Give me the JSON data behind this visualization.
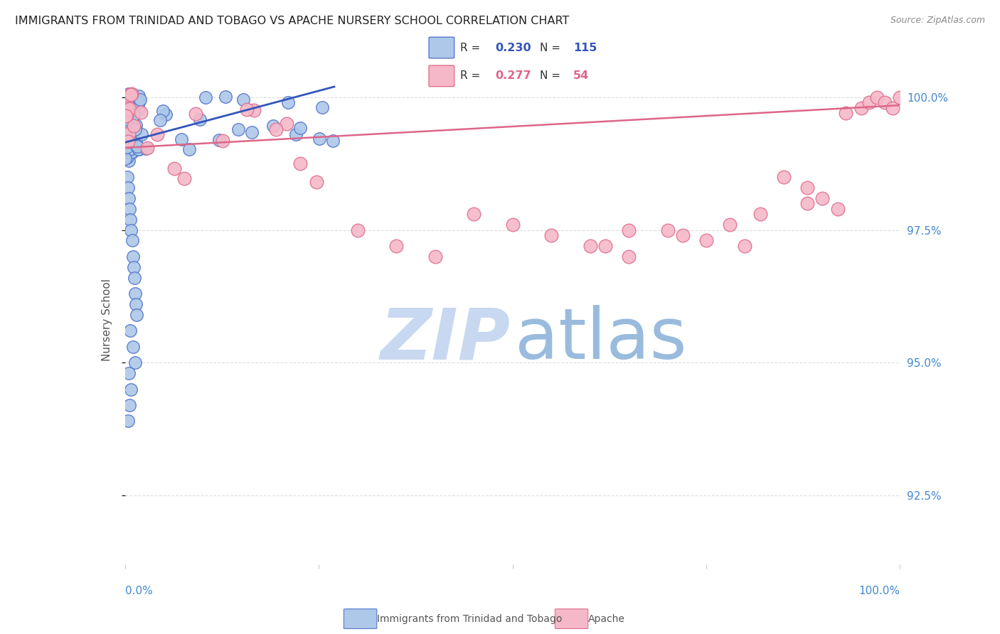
{
  "title": "IMMIGRANTS FROM TRINIDAD AND TOBAGO VS APACHE NURSERY SCHOOL CORRELATION CHART",
  "source": "Source: ZipAtlas.com",
  "ylabel": "Nursery School",
  "ytick_values": [
    0.925,
    0.95,
    0.975,
    1.0
  ],
  "ytick_labels": [
    "92.5%",
    "95.0%",
    "97.5%",
    "100.0%"
  ],
  "legend_blue_R": "0.230",
  "legend_blue_N": "115",
  "legend_pink_R": "0.277",
  "legend_pink_N": "54",
  "legend_label_blue": "Immigrants from Trinidad and Tobago",
  "legend_label_pink": "Apache",
  "blue_face_color": "#adc8e8",
  "blue_edge_color": "#5577cc",
  "pink_face_color": "#f5b8c8",
  "pink_edge_color": "#e07090",
  "blue_line_color": "#3355bb",
  "pink_line_color": "#dd6688",
  "grid_color": "#dddddd",
  "title_color": "#222222",
  "source_color": "#888888",
  "axis_tick_color": "#4488cc",
  "ylabel_color": "#555555",
  "watermark_zip_color": "#c8d8f0",
  "watermark_atlas_color": "#99bbdd",
  "background_color": "#ffffff",
  "xlim": [
    0.0,
    1.0
  ],
  "ylim": [
    0.912,
    1.004
  ],
  "blue_trend_x": [
    0.0,
    0.27
  ],
  "blue_trend_y": [
    0.9915,
    1.002
  ],
  "pink_trend_x": [
    0.0,
    1.0
  ],
  "pink_trend_y": [
    0.9905,
    0.9985
  ]
}
